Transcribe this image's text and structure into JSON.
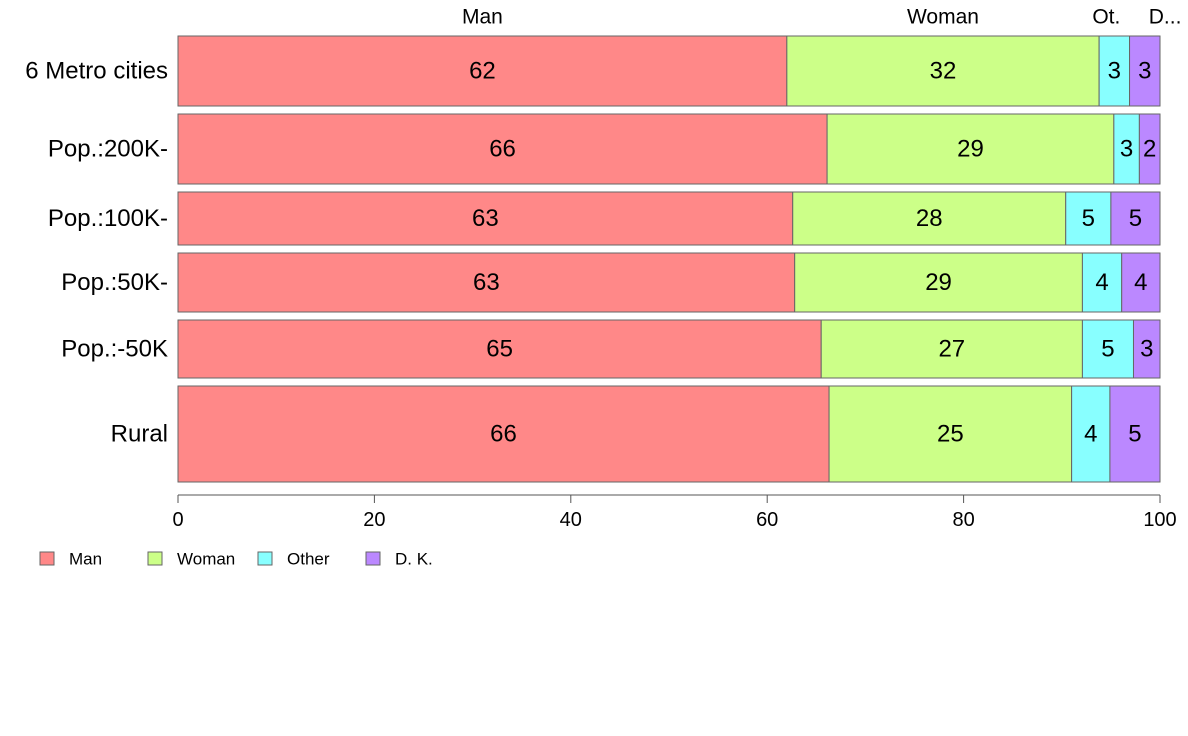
{
  "chart_data": {
    "type": "bar",
    "orientation": "horizontal",
    "stacked": true,
    "categories": [
      "6 Metro cities",
      "Pop.:200K-",
      "Pop.:100K-",
      "Pop.:50K-",
      "Pop.:-50K",
      "Rural"
    ],
    "series": [
      {
        "name": "Man",
        "color": "#ff8888",
        "values": [
          62,
          66,
          63,
          63,
          65,
          66
        ],
        "exact": [
          62.0,
          66.1,
          62.6,
          62.8,
          65.5,
          66.3
        ]
      },
      {
        "name": "Woman",
        "color": "#ccff88",
        "values": [
          32,
          29,
          28,
          29,
          27,
          25
        ],
        "exact": [
          31.8,
          29.2,
          27.8,
          29.3,
          26.6,
          24.7
        ]
      },
      {
        "name": "Other",
        "color": "#88ffff",
        "values": [
          3,
          3,
          5,
          4,
          5,
          4
        ],
        "exact": [
          3.1,
          2.6,
          4.6,
          4.0,
          5.2,
          3.9
        ]
      },
      {
        "name": "D. K.",
        "color": "#bb88ff",
        "values": [
          3,
          2,
          5,
          4,
          3,
          5
        ],
        "exact": [
          3.1,
          2.1,
          5.0,
          3.9,
          2.7,
          5.1
        ]
      }
    ],
    "top_labels": [
      "Man",
      "Woman",
      "Ot.",
      "D..."
    ],
    "x_ticks": [
      "0",
      "20",
      "40",
      "60",
      "80",
      "100"
    ],
    "xlim": [
      0,
      100
    ],
    "legend": [
      "Man",
      "Woman",
      "Other",
      "D. K."
    ],
    "legend_position": "bottom-left",
    "grid": false
  }
}
